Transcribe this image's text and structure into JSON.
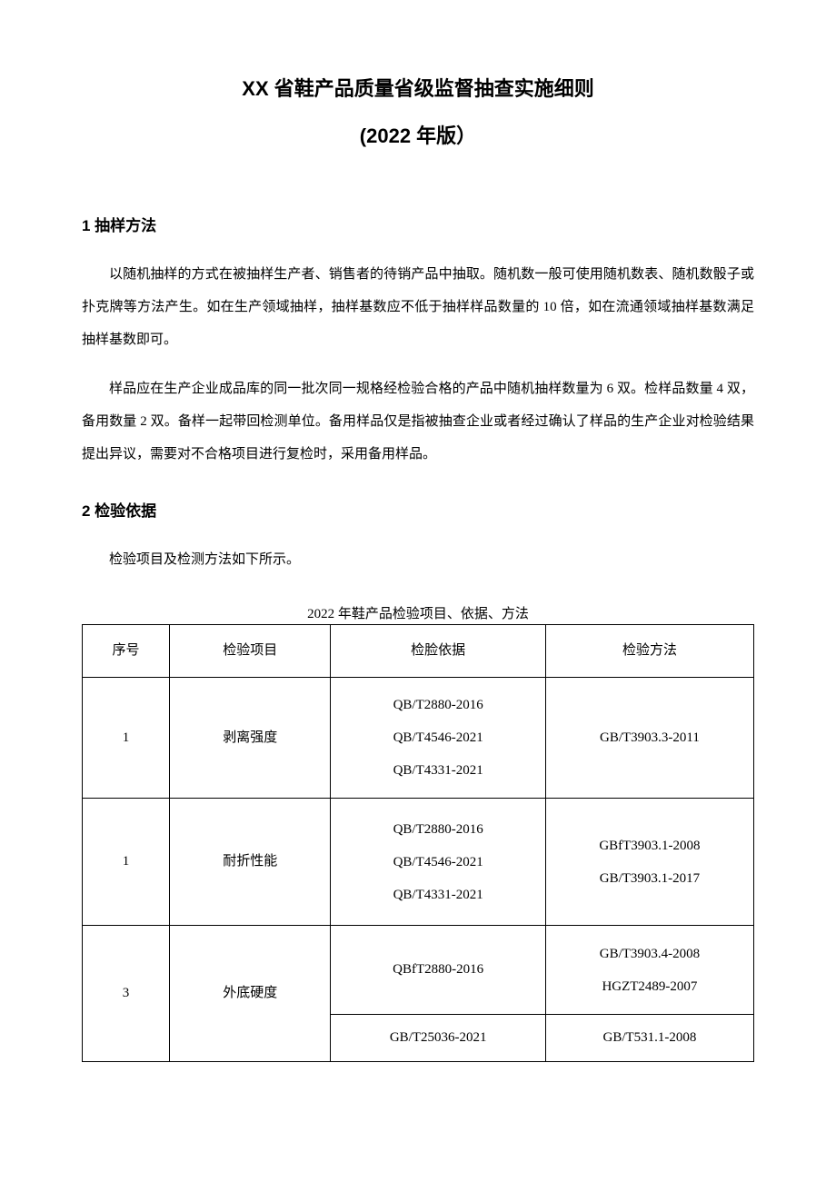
{
  "title_main": "XX 省鞋产品质量省级监督抽查实施细则",
  "title_sub": "(2022 年版）",
  "section1": {
    "heading": "1 抽样方法",
    "p1": "以随机抽样的方式在被抽样生产者、销售者的待销产品中抽取。随机数一般可使用随机数表、随机数骰子或扑克牌等方法产生。如在生产领域抽样，抽样基数应不低于抽样样品数量的 10 倍，如在流通领域抽样基数满足抽样基数即可。",
    "p2": "样品应在生产企业成品库的同一批次同一规格经检验合格的产品中随机抽样数量为 6 双。检样品数量 4 双，备用数量 2 双。备样一起带回检测单位。备用样品仅是指被抽查企业或者经过确认了样品的生产企业对检验结果提出异议，需要对不合格项目进行复检时，采用备用样品。"
  },
  "section2": {
    "heading": "2 检验依据",
    "p1": "检验项目及检测方法如下所示。"
  },
  "table": {
    "caption": "2022 年鞋产品检验项目、依据、方法",
    "headers": {
      "c0": "序号",
      "c1": "检验项目",
      "c2": "检脸依据",
      "c3": "检验方法"
    },
    "rows": [
      {
        "seq": "1",
        "item": "剥离强度",
        "basis": "QB/T2880-2016\nQB/T4546-2021\nQB/T4331-2021",
        "method": "GB/T3903.3-2011"
      },
      {
        "seq": "1",
        "item": "耐折性能",
        "basis": "QB/T2880-2016\nQB/T4546-2021\nQB/T4331-2021",
        "method": "GBfT3903.1-2008\nGB/T3903.1-2017"
      },
      {
        "seq": "3",
        "item": "外底硬度",
        "basis_top": "QBfT2880-2016",
        "method_top": "GB/T3903.4-2008\nHGZT2489-2007",
        "basis_bot": "GB/T25036-2021",
        "method_bot": "GB/T531.1-2008"
      }
    ]
  }
}
